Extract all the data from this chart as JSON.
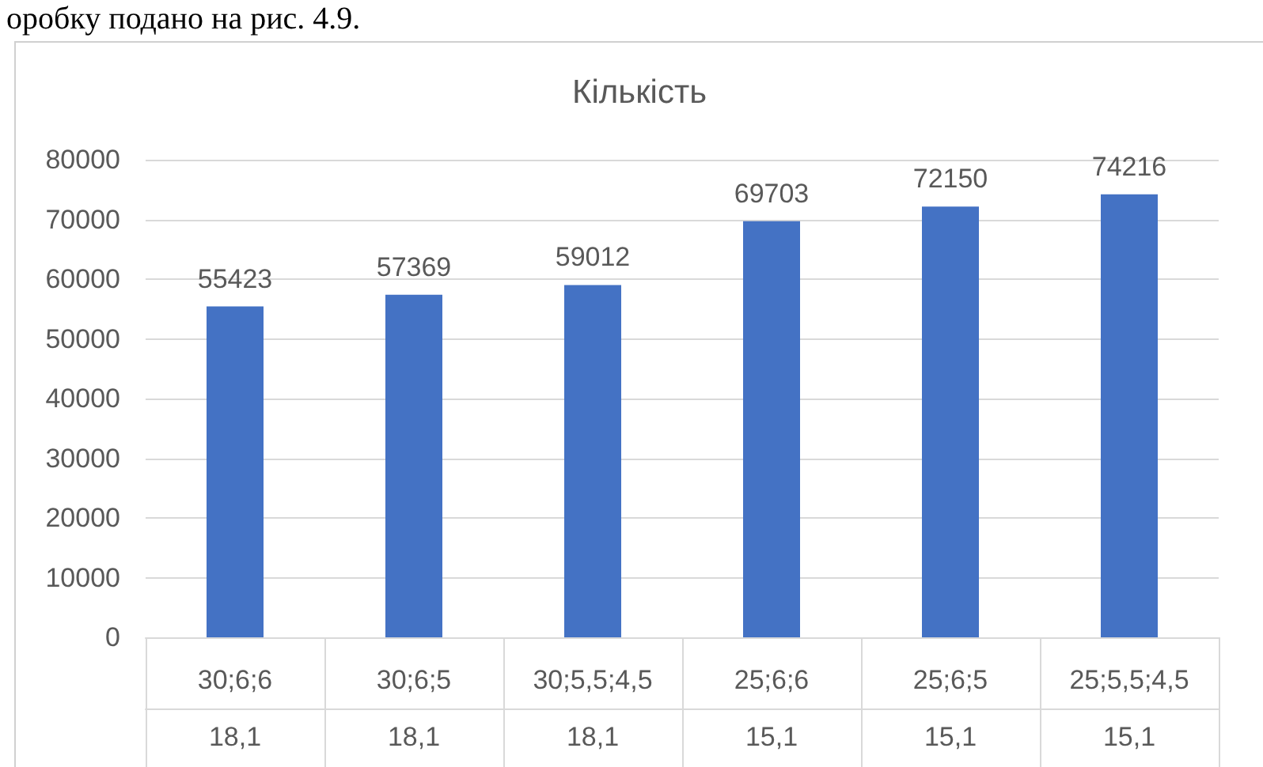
{
  "chart_data": {
    "type": "bar",
    "title": "Кількість",
    "categories": [
      "30;6;6\n18,1",
      "30;6;5\n18,1",
      "30;5,5;4,5\n18,1",
      "25;6;6\n15,1",
      "25;6;5\n15,1",
      "25;5,5;4,5\n15,1"
    ],
    "values": [
      55423,
      57369,
      59012,
      69703,
      72150,
      74216
    ],
    "color": "#4472c4",
    "ylim": [
      0,
      80000
    ],
    "yticks": [
      0,
      10000,
      20000,
      30000,
      40000,
      50000,
      60000,
      70000,
      80000
    ],
    "grid": "y",
    "data_labels": true,
    "annotations": [
      "оробку подано на рис. 4.9."
    ]
  }
}
